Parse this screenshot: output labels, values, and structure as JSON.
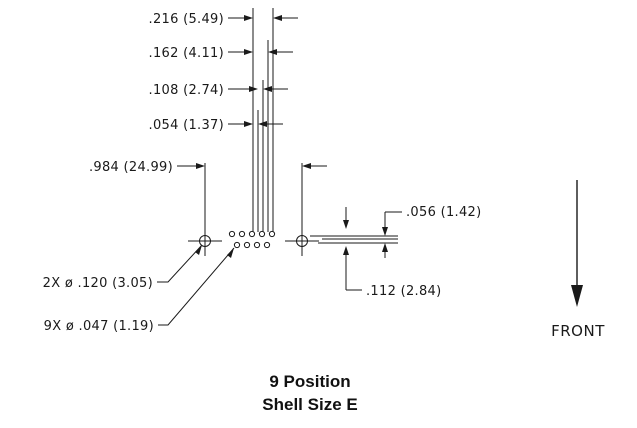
{
  "dimensions": {
    "spacing_216": ".216 (5.49)",
    "spacing_162": ".162 (4.11)",
    "spacing_108": ".108 (2.74)",
    "spacing_054": ".054 (1.37)",
    "mount_spacing": ".984 (24.99)",
    "row_offset": ".056 (1.42)",
    "row_pitch": ".112 (2.84)",
    "mount_holes": "2X ø .120 (3.05)",
    "contact_holes": "9X ø .047 (1.19)"
  },
  "direction_label": "FRONT",
  "title": {
    "line1": "9 Position",
    "line2": "Shell Size E"
  }
}
